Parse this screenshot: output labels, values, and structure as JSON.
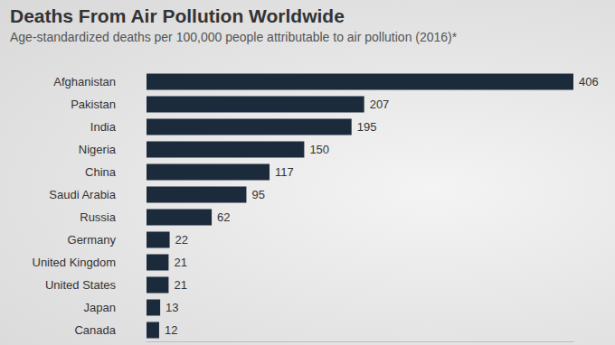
{
  "chart_data": {
    "type": "bar",
    "title": "Deaths From Air Pollution Worldwide",
    "subtitle": "Age-standardized deaths per 100,000 people attributable to air pollution (2016)*",
    "categories": [
      "Afghanistan",
      "Pakistan",
      "India",
      "Nigeria",
      "China",
      "Saudi Arabia",
      "Russia",
      "Germany",
      "United Kingdom",
      "United States",
      "Japan",
      "Canada"
    ],
    "values": [
      406,
      207,
      195,
      150,
      117,
      95,
      62,
      22,
      21,
      21,
      13,
      12
    ],
    "color": "#1c2b3c",
    "orientation": "horizontal",
    "data_labels": true,
    "xlim": [
      0,
      406
    ],
    "tick_labels": "y",
    "grid": false
  }
}
